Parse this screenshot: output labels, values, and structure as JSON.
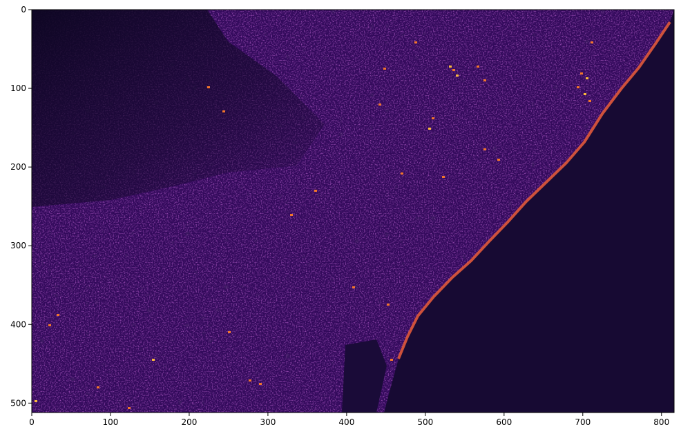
{
  "chart_data": {
    "type": "heatmap",
    "subtype": "image (imshow, satellite band)",
    "colormap": "inferno",
    "title": "",
    "xlabel": "",
    "ylabel": "",
    "xlim": [
      0,
      816
    ],
    "ylim": [
      512,
      0
    ],
    "y_axis_inverted": true,
    "grid": false,
    "legend": "none",
    "x_ticks": [
      0,
      100,
      200,
      300,
      400,
      500,
      600,
      700,
      800
    ],
    "y_ticks": [
      0,
      100,
      200,
      300,
      400,
      500
    ],
    "value_scale_note": "",
    "regions": {
      "land_overall": "dark purple, urban texture",
      "upper_left_hills": "near-black",
      "coastline": "bright orange streak along beaches",
      "sea_lower_right": "very dark uniform"
    },
    "colors": {
      "sea": "#170a33",
      "land_base": "#330a5c",
      "hills": "#120728",
      "highlight_orange": "#f3762a",
      "highlight_yellow": "#fbb93c",
      "beach": "#e0593a"
    }
  }
}
